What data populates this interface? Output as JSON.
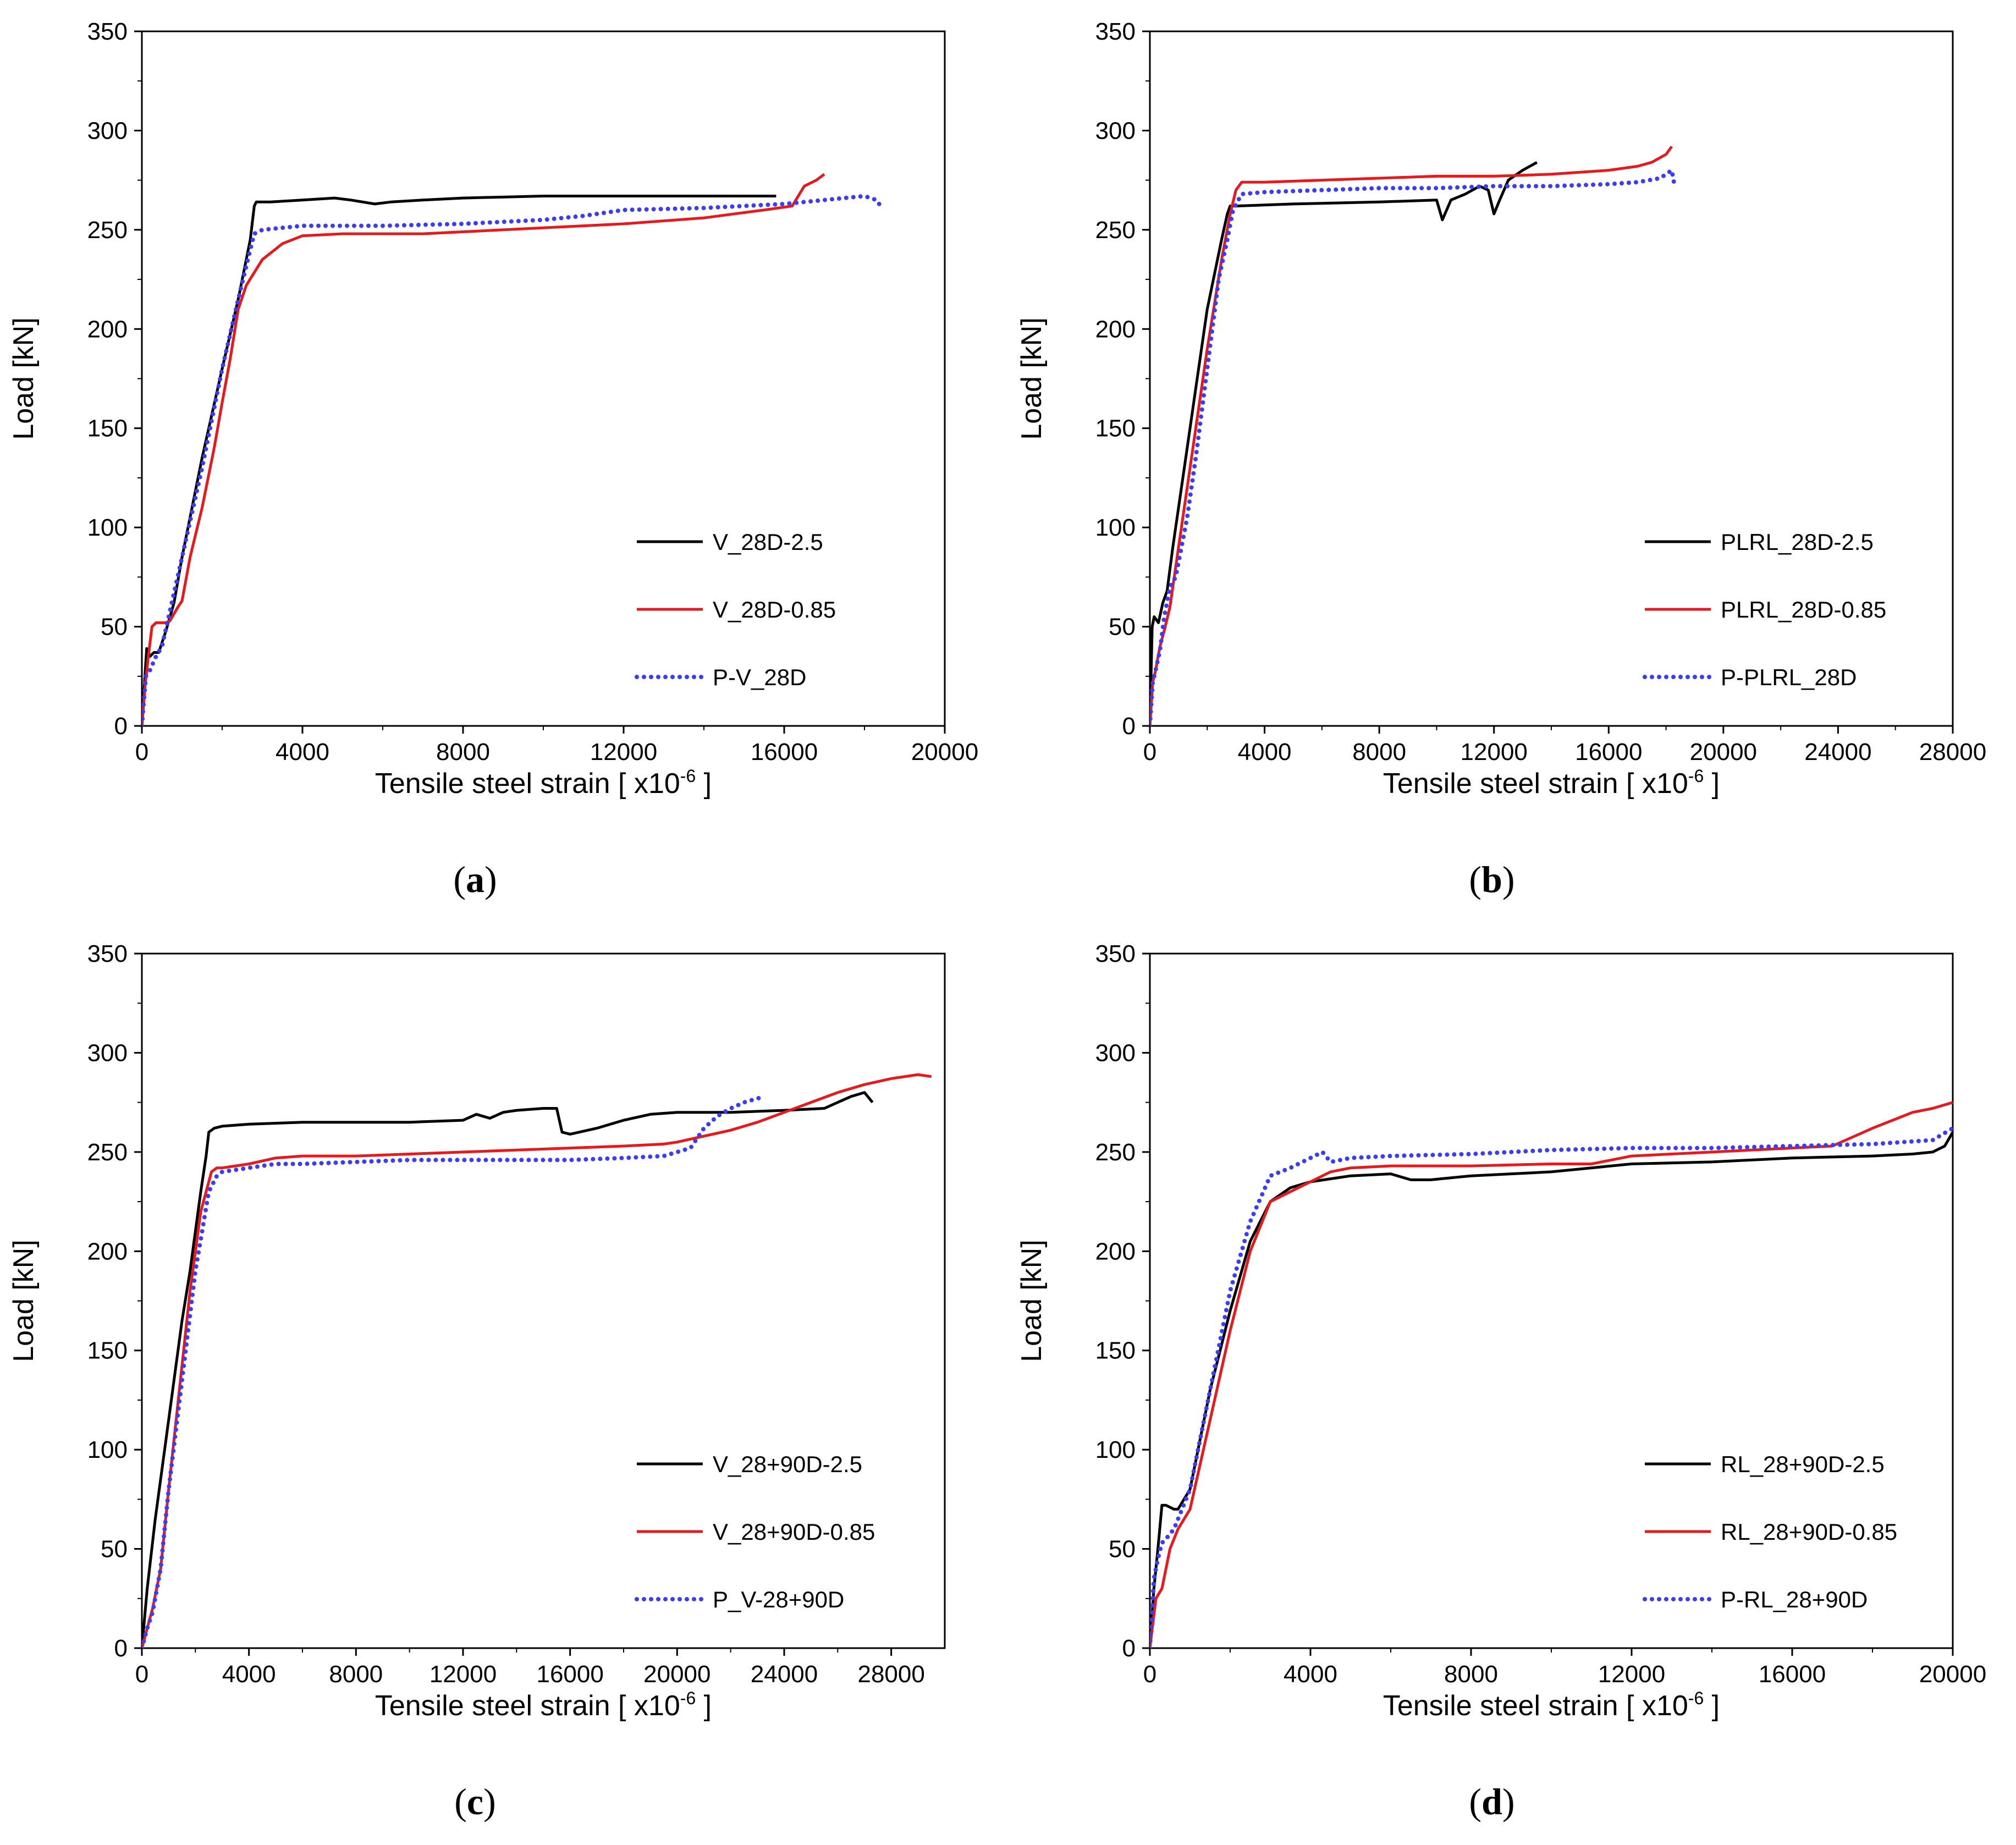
{
  "chart_data": [
    {
      "id": "a",
      "type": "line",
      "panel_label": "a",
      "xlabel": "Tensile steel strain [ x10",
      "xlabel_sup": "-6",
      "xlabel_end": " ]",
      "ylabel": "Load [kN]",
      "xlim": [
        0,
        20000
      ],
      "ylim": [
        0,
        350
      ],
      "xticks": [
        0,
        4000,
        8000,
        12000,
        16000,
        20000
      ],
      "yticks": [
        0,
        50,
        100,
        150,
        200,
        250,
        300,
        350
      ],
      "legend_position": "lower-right",
      "series": [
        {
          "name": "V_28D-2.5",
          "color": "#000000",
          "dash": "solid",
          "x": [
            0,
            60,
            120,
            200,
            300,
            420,
            600,
            800,
            1000,
            1500,
            2000,
            2400,
            2700,
            2800,
            2850,
            3200,
            4000,
            4800,
            5200,
            5800,
            6200,
            7000,
            8000,
            10000,
            12000,
            14000,
            15800
          ],
          "y": [
            0,
            20,
            39,
            35,
            37,
            37,
            48,
            62,
            85,
            135,
            180,
            215,
            245,
            262,
            264,
            264,
            265,
            266,
            265,
            263,
            264,
            265,
            266,
            267,
            267,
            267,
            267
          ]
        },
        {
          "name": "V_28D-0.85",
          "color": "#e8191c",
          "dash": "solid",
          "x": [
            0,
            80,
            160,
            250,
            350,
            450,
            600,
            700,
            900,
            1000,
            1200,
            1500,
            1800,
            2000,
            2200,
            2400,
            2600,
            3000,
            3500,
            4000,
            5000,
            6000,
            7000,
            8000,
            10000,
            12000,
            14000,
            15500,
            16200,
            16500,
            16800,
            17000
          ],
          "y": [
            0,
            20,
            35,
            50,
            52,
            52,
            52,
            53,
            60,
            63,
            85,
            110,
            140,
            163,
            185,
            210,
            222,
            235,
            243,
            247,
            248,
            248,
            248,
            249,
            251,
            253,
            256,
            260,
            262,
            272,
            275,
            278
          ]
        },
        {
          "name": "P-V_28D",
          "color": "#3a3df5",
          "dash": "dotted",
          "x": [
            0,
            100,
            200,
            350,
            500,
            700,
            1000,
            1500,
            2000,
            2400,
            2700,
            2800,
            3000,
            4000,
            6000,
            8000,
            10000,
            11000,
            12000,
            14000,
            16000,
            17000,
            18000,
            18300,
            18400
          ],
          "y": [
            0,
            25,
            28,
            35,
            40,
            58,
            85,
            130,
            180,
            215,
            240,
            248,
            250,
            252,
            252,
            253,
            255,
            257,
            260,
            261,
            263,
            265,
            267,
            265,
            262
          ]
        }
      ]
    },
    {
      "id": "b",
      "type": "line",
      "panel_label": "b",
      "xlabel": "Tensile steel strain [ x10",
      "xlabel_sup": "-6",
      "xlabel_end": " ]",
      "ylabel": "Load [kN]",
      "xlim": [
        0,
        28000
      ],
      "ylim": [
        0,
        350
      ],
      "xticks": [
        0,
        4000,
        8000,
        12000,
        16000,
        20000,
        24000,
        28000
      ],
      "yticks": [
        0,
        50,
        100,
        150,
        200,
        250,
        300,
        350
      ],
      "legend_position": "lower-right",
      "series": [
        {
          "name": "PLRL_28D-2.5",
          "color": "#000000",
          "dash": "solid",
          "x": [
            0,
            80,
            150,
            300,
            450,
            600,
            800,
            1200,
            1600,
            2000,
            2500,
            2700,
            2800,
            3000,
            5000,
            8000,
            10000,
            10200,
            10500,
            11000,
            11500,
            11800,
            12000,
            12200,
            12500,
            13000,
            13500
          ],
          "y": [
            0,
            50,
            55,
            52,
            62,
            68,
            90,
            130,
            170,
            210,
            245,
            258,
            262,
            262,
            263,
            264,
            265,
            255,
            265,
            268,
            272,
            270,
            258,
            265,
            275,
            280,
            284
          ]
        },
        {
          "name": "PLRL_28D-0.85",
          "color": "#e8191c",
          "dash": "solid",
          "x": [
            0,
            100,
            200,
            350,
            500,
            700,
            1000,
            1500,
            2000,
            2500,
            2800,
            3000,
            3200,
            4000,
            6000,
            8000,
            10000,
            12000,
            14000,
            16000,
            17000,
            17500,
            18000,
            18200
          ],
          "y": [
            0,
            22,
            28,
            40,
            48,
            60,
            90,
            140,
            190,
            235,
            258,
            270,
            274,
            274,
            275,
            276,
            277,
            277,
            278,
            280,
            282,
            284,
            288,
            292
          ]
        },
        {
          "name": "P-PLRL_28D",
          "color": "#3a3df5",
          "dash": "dotted",
          "x": [
            0,
            100,
            200,
            350,
            500,
            700,
            900,
            1100,
            1300,
            1600,
            2000,
            2400,
            2700,
            2900,
            3200,
            4000,
            6000,
            8000,
            10000,
            12000,
            14000,
            16000,
            17000,
            17800,
            18200,
            18300
          ],
          "y": [
            0,
            22,
            28,
            38,
            55,
            70,
            75,
            90,
            105,
            135,
            180,
            225,
            245,
            260,
            268,
            269,
            270,
            271,
            271,
            272,
            272,
            273,
            274,
            276,
            280,
            272
          ]
        }
      ]
    },
    {
      "id": "c",
      "type": "line",
      "panel_label": "c",
      "xlabel": "Tensile steel strain [ x10",
      "xlabel_sup": "-6",
      "xlabel_end": " ]",
      "ylabel": "Load [kN]",
      "xlim": [
        0,
        30000
      ],
      "ylim": [
        0,
        350
      ],
      "xticks": [
        0,
        4000,
        8000,
        12000,
        16000,
        20000,
        24000,
        28000
      ],
      "yticks": [
        0,
        50,
        100,
        150,
        200,
        250,
        300,
        350
      ],
      "legend_position": "lower-right",
      "series": [
        {
          "name": "V_28+90D-2.5",
          "color": "#000000",
          "dash": "solid",
          "x": [
            0,
            200,
            500,
            1000,
            1500,
            1800,
            2000,
            2200,
            2400,
            2500,
            2700,
            3000,
            4000,
            6000,
            8000,
            10000,
            12000,
            12500,
            13000,
            13500,
            14000,
            15000,
            15500,
            15700,
            16000,
            17000,
            18000,
            19000,
            20000,
            22000,
            24000,
            25500,
            26000,
            26500,
            27000,
            27300
          ],
          "y": [
            0,
            30,
            65,
            115,
            165,
            190,
            210,
            230,
            248,
            260,
            262,
            263,
            264,
            265,
            265,
            265,
            266,
            269,
            267,
            270,
            271,
            272,
            272,
            260,
            259,
            262,
            266,
            269,
            270,
            270,
            271,
            272,
            275,
            278,
            280,
            275
          ]
        },
        {
          "name": "V_28+90D-0.85",
          "color": "#e8191c",
          "dash": "solid",
          "x": [
            0,
            200,
            400,
            700,
            1000,
            1400,
            1800,
            2200,
            2600,
            2800,
            3000,
            4000,
            5000,
            6000,
            8000,
            10000,
            12000,
            14000,
            16000,
            18000,
            19500,
            20000,
            21000,
            22000,
            23000,
            24000,
            25000,
            26000,
            27000,
            28000,
            29000,
            29500
          ],
          "y": [
            0,
            10,
            20,
            40,
            80,
            130,
            180,
            220,
            240,
            242,
            242,
            244,
            247,
            248,
            248,
            249,
            250,
            251,
            252,
            253,
            254,
            255,
            258,
            261,
            265,
            270,
            275,
            280,
            284,
            287,
            289,
            288
          ]
        },
        {
          "name": "P_V-28+90D",
          "color": "#3a3df5",
          "dash": "dotted",
          "x": [
            0,
            200,
            400,
            700,
            1000,
            1500,
            2000,
            2500,
            2800,
            3000,
            4000,
            5000,
            6000,
            8000,
            10000,
            12000,
            14000,
            16000,
            18000,
            19500,
            20500,
            21000,
            21500,
            22000,
            22500,
            23000,
            23300
          ],
          "y": [
            0,
            10,
            18,
            40,
            80,
            135,
            190,
            230,
            238,
            240,
            242,
            244,
            244,
            245,
            246,
            246,
            246,
            246,
            247,
            248,
            252,
            262,
            268,
            272,
            275,
            277,
            278
          ]
        }
      ]
    },
    {
      "id": "d",
      "type": "line",
      "panel_label": "d",
      "xlabel": "Tensile steel strain [ x10",
      "xlabel_sup": "-6",
      "xlabel_end": " ]",
      "ylabel": "Load [kN]",
      "xlim": [
        0,
        20000
      ],
      "ylim": [
        0,
        350
      ],
      "xticks": [
        0,
        4000,
        8000,
        12000,
        16000,
        20000
      ],
      "yticks": [
        0,
        50,
        100,
        150,
        200,
        250,
        300,
        350
      ],
      "legend_position": "lower-right",
      "series": [
        {
          "name": "RL_28+90D-2.5",
          "color": "#000000",
          "dash": "solid",
          "x": [
            0,
            100,
            200,
            300,
            400,
            500,
            600,
            700,
            1000,
            1500,
            2000,
            2500,
            3000,
            3500,
            4000,
            5000,
            6000,
            6500,
            7000,
            8000,
            10000,
            11000,
            12000,
            14000,
            16000,
            18000,
            19000,
            19500,
            19800,
            20000
          ],
          "y": [
            0,
            30,
            50,
            72,
            72,
            71,
            70,
            70,
            80,
            130,
            170,
            205,
            225,
            232,
            235,
            238,
            239,
            236,
            236,
            238,
            240,
            242,
            244,
            245,
            247,
            248,
            249,
            250,
            253,
            260
          ]
        },
        {
          "name": "RL_28+90D-0.85",
          "color": "#e8191c",
          "dash": "solid",
          "x": [
            0,
            150,
            300,
            500,
            700,
            1000,
            1500,
            2000,
            2500,
            3000,
            3500,
            4000,
            4500,
            5000,
            6000,
            8000,
            10000,
            11000,
            12000,
            14000,
            16000,
            17000,
            18000,
            19000,
            19500,
            20000
          ],
          "y": [
            0,
            25,
            30,
            50,
            60,
            70,
            115,
            160,
            200,
            225,
            230,
            235,
            240,
            242,
            243,
            243,
            244,
            244,
            248,
            250,
            252,
            253,
            262,
            270,
            272,
            275
          ]
        },
        {
          "name": "P-RL_28+90D",
          "color": "#3a3df5",
          "dash": "dotted",
          "x": [
            0,
            100,
            200,
            300,
            400,
            600,
            1000,
            1500,
            2000,
            2500,
            3000,
            3500,
            4000,
            4300,
            4500,
            5000,
            6000,
            8000,
            10000,
            12000,
            14000,
            16000,
            18000,
            19500,
            20000
          ],
          "y": [
            0,
            35,
            45,
            53,
            55,
            60,
            80,
            130,
            180,
            215,
            238,
            242,
            247,
            250,
            245,
            247,
            248,
            249,
            251,
            252,
            252,
            253,
            254,
            256,
            262
          ]
        }
      ]
    }
  ]
}
